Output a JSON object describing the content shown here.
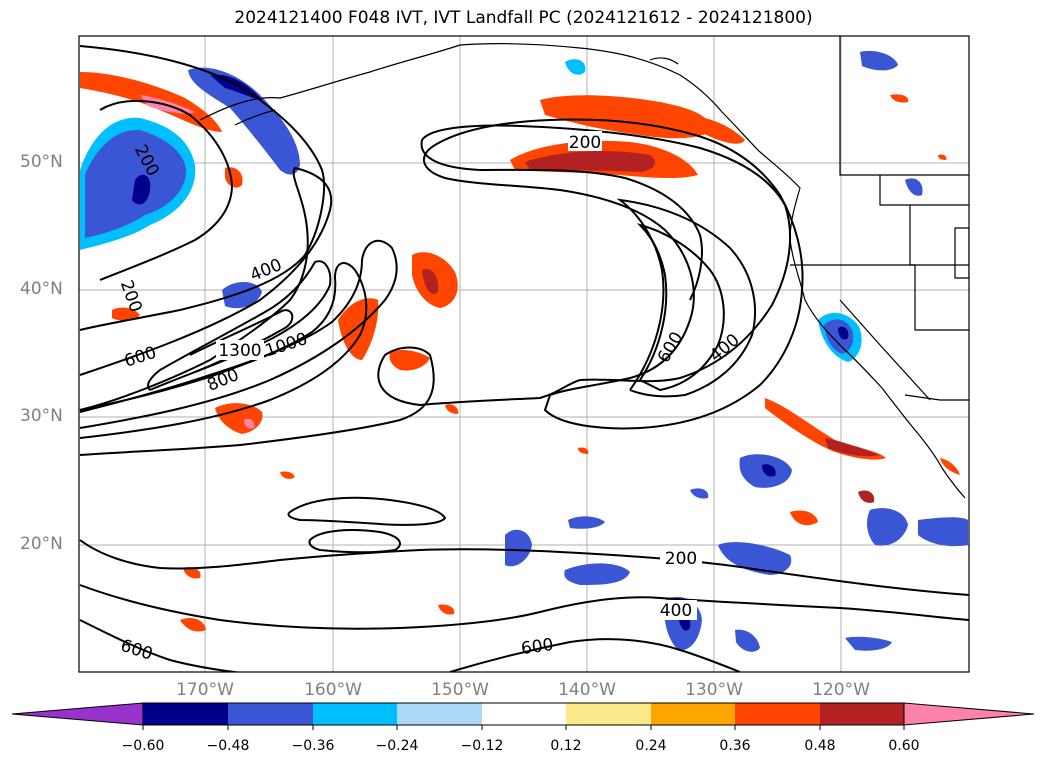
{
  "title": "2024121400 F048 IVT, IVT Landfall PC (2024121612 - 2024121800)",
  "map": {
    "lat_labels": [
      "50°N",
      "40°N",
      "30°N",
      "20°N"
    ],
    "lon_labels": [
      "170°W",
      "160°W",
      "150°W",
      "140°W",
      "130°W",
      "120°W"
    ],
    "contour_labels": [
      "200",
      "200",
      "200",
      "400",
      "600",
      "1300",
      "1000",
      "800",
      "600",
      "400",
      "200",
      "400",
      "600",
      "600"
    ]
  },
  "colorbar": {
    "ticks": [
      "−0.60",
      "−0.48",
      "−0.36",
      "−0.24",
      "−0.12",
      "0.12",
      "0.24",
      "0.36",
      "0.48",
      "0.60"
    ],
    "colors": [
      "#9932cc",
      "#00008b",
      "#3a56d4",
      "#00bfff",
      "#add8f5",
      "#ffffff",
      "#fce98a",
      "#ffa500",
      "#ff4500",
      "#b22222",
      "#ff82ab"
    ]
  }
}
